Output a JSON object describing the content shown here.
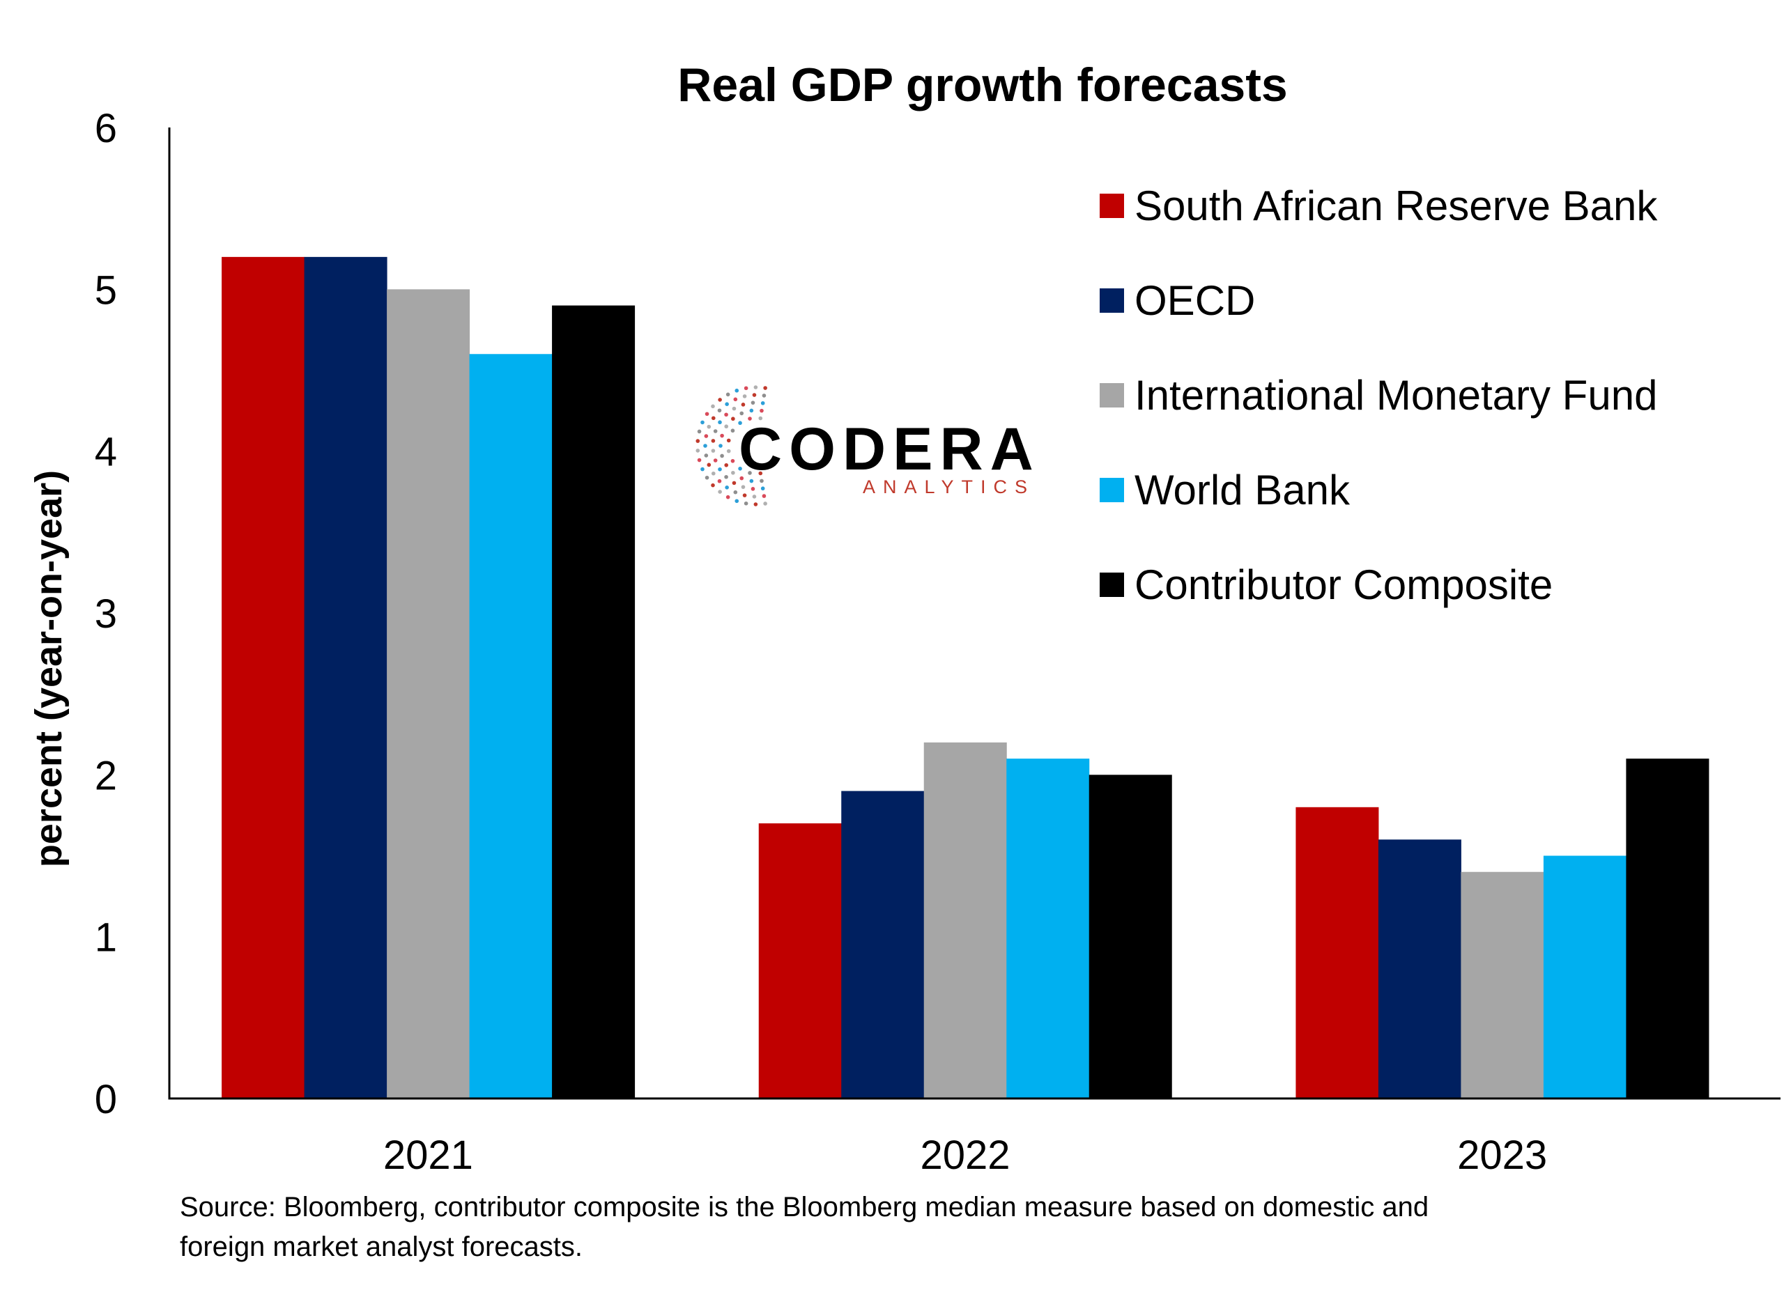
{
  "chart_data": {
    "type": "bar",
    "title": "Real GDP growth forecasts",
    "ylabel": "percent (year-on-year)",
    "xlabel": "",
    "ylim": [
      0,
      6
    ],
    "yticks": [
      "0",
      "1",
      "2",
      "3",
      "4",
      "5",
      "6"
    ],
    "categories": [
      "2021",
      "2022",
      "2023"
    ],
    "series": [
      {
        "name": "South African Reserve Bank",
        "color": "#c00000",
        "values": [
          5.2,
          1.7,
          1.8
        ]
      },
      {
        "name": "OECD",
        "color": "#002060",
        "values": [
          5.2,
          1.9,
          1.6
        ]
      },
      {
        "name": "International Monetary Fund",
        "color": "#a6a6a6",
        "values": [
          5.0,
          2.2,
          1.4
        ]
      },
      {
        "name": "World Bank",
        "color": "#00b0f0",
        "values": [
          4.6,
          2.1,
          1.5
        ]
      },
      {
        "name": "Contributor Composite",
        "color": "#000000",
        "values": [
          4.9,
          2.0,
          2.1
        ]
      }
    ],
    "legend_position": "top-right",
    "grid": false
  },
  "logo": {
    "name": "CODERA",
    "sub": "ANALYTICS",
    "icon": "circular-dots-icon"
  },
  "source": {
    "line1": "Source: Bloomberg, contributor composite is the Bloomberg median measure based on domestic and",
    "line2": "foreign market analyst forecasts."
  }
}
